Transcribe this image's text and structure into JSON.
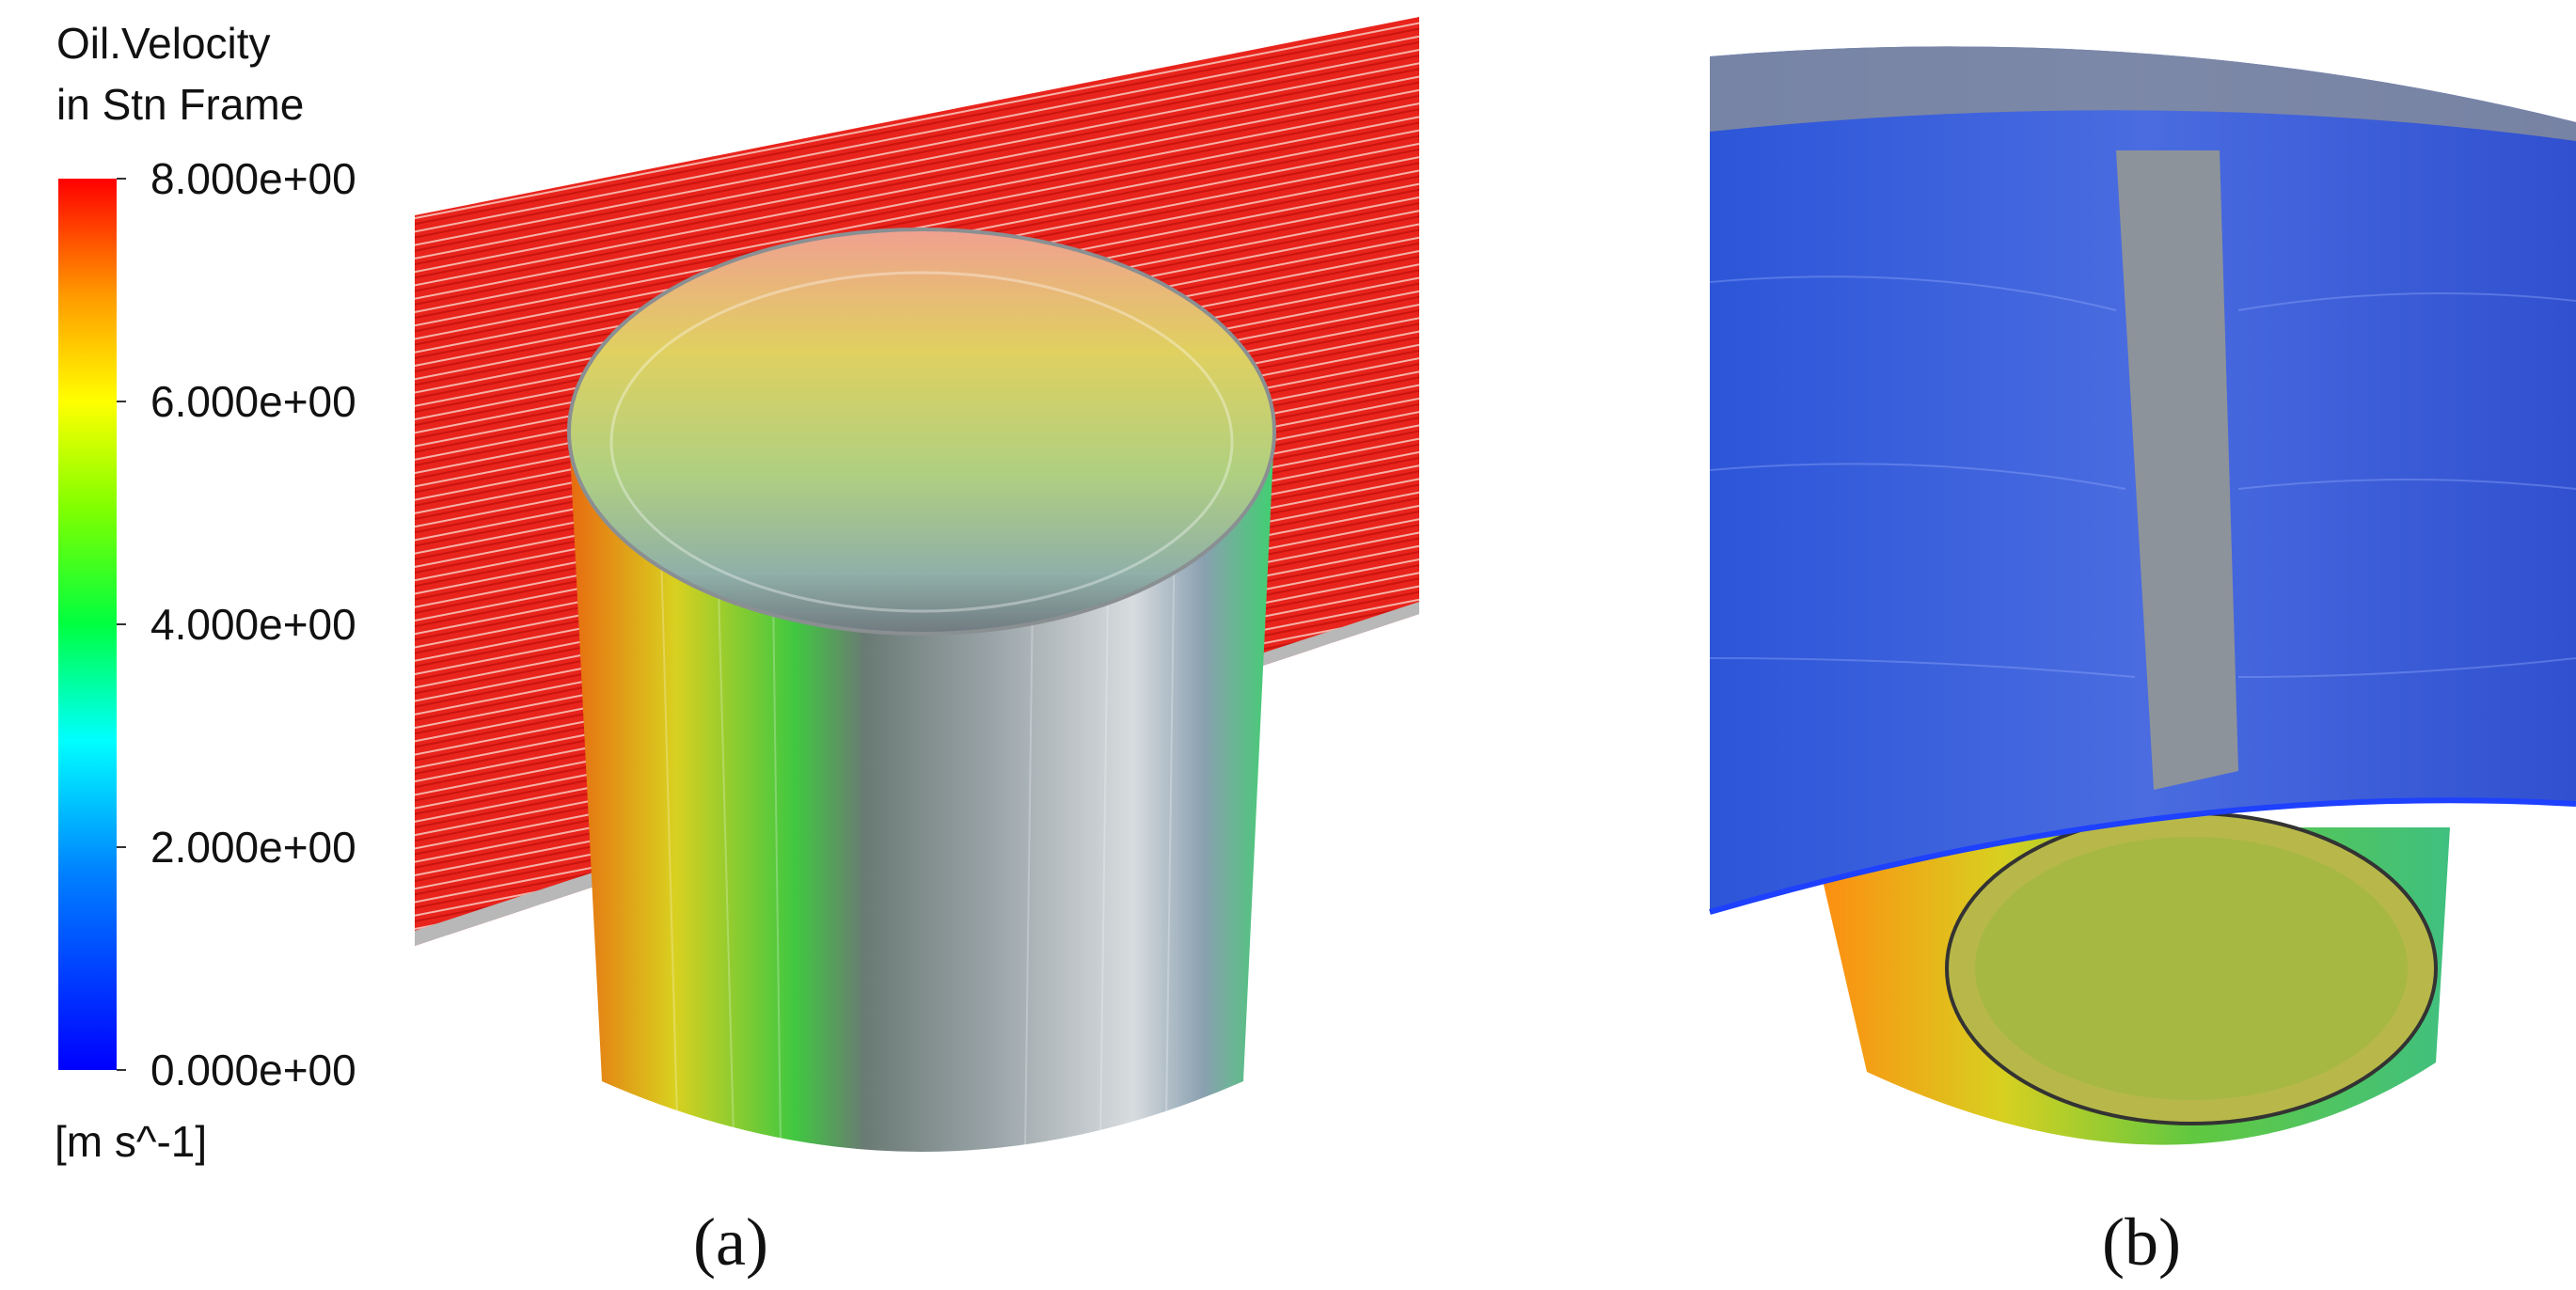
{
  "colorbar": {
    "title": [
      "Oil.Velocity",
      "in Stn Frame"
    ],
    "unit": "[m s^-1]",
    "range": [
      0,
      8
    ],
    "ticks": [
      {
        "value": 8,
        "label": "8.000e+00"
      },
      {
        "value": 6,
        "label": "6.000e+00"
      },
      {
        "value": 4,
        "label": "4.000e+00"
      },
      {
        "value": 2,
        "label": "2.000e+00"
      },
      {
        "value": 0,
        "label": "0.000e+00"
      }
    ]
  },
  "panels": [
    {
      "label": "(a)"
    },
    {
      "label": "(b)"
    }
  ]
}
